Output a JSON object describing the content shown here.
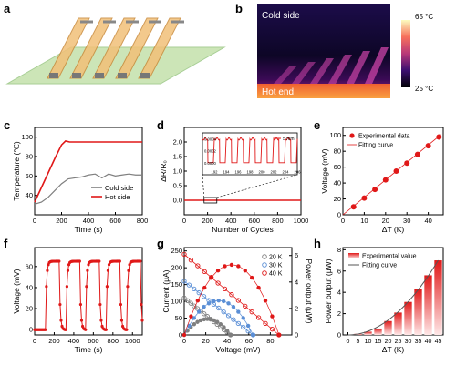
{
  "panels": {
    "a": {
      "letter": "a"
    },
    "b": {
      "letter": "b",
      "label_top": "Cold side",
      "label_bottom": "Hot end",
      "cbar_top": "65 °C",
      "cbar_bottom": "25 °C"
    },
    "c": {
      "letter": "c"
    },
    "d": {
      "letter": "d",
      "inset_legend": "5 mm"
    },
    "e": {
      "letter": "e"
    },
    "f": {
      "letter": "f"
    },
    "g": {
      "letter": "g"
    },
    "h": {
      "letter": "h"
    }
  },
  "colors": {
    "red": "#e01818",
    "blue": "#5b8fd6",
    "gray": "#7f7f7f",
    "green": "#c7e3b0",
    "orange": "#e0a060"
  },
  "chart_data": [
    {
      "id": "c",
      "type": "line",
      "xlabel": "Time (s)",
      "ylabel": "Temperature (℃)",
      "xlim": [
        0,
        800
      ],
      "ylim": [
        20,
        110
      ],
      "xticks": [
        "0",
        "200",
        "400",
        "600",
        "800"
      ],
      "yticks": [
        "40",
        "60",
        "80",
        "100"
      ],
      "legend_position": "bottom-right",
      "series": [
        {
          "name": "Cold side",
          "color": "#7f7f7f",
          "x": [
            0,
            50,
            100,
            150,
            200,
            250,
            300,
            350,
            400,
            450,
            500,
            550,
            600,
            650,
            700,
            750,
            800
          ],
          "y": [
            31,
            33,
            38,
            45,
            52,
            57,
            58,
            59,
            61,
            62,
            58,
            62,
            60,
            61,
            62,
            61,
            61
          ]
        },
        {
          "name": "Hot side",
          "color": "#e01818",
          "x": [
            0,
            50,
            100,
            150,
            200,
            230,
            260,
            300,
            400,
            500,
            600,
            700,
            800
          ],
          "y": [
            33,
            48,
            63,
            78,
            92,
            96,
            95,
            95,
            95,
            95,
            95,
            95,
            95
          ]
        }
      ]
    },
    {
      "id": "d",
      "type": "line",
      "xlabel": "Number of Cycles",
      "ylabel": "ΔR/R₀",
      "xlim": [
        0,
        1000
      ],
      "ylim": [
        -0.5,
        2.5
      ],
      "xticks": [
        "0",
        "200",
        "400",
        "600",
        "800",
        "1000"
      ],
      "yticks": [
        "0.0",
        "0.5",
        "1.0",
        "1.5",
        "2.0"
      ],
      "series": [
        {
          "name": "",
          "color": "#e01818",
          "x": [
            0,
            1000
          ],
          "y": [
            0,
            0
          ]
        }
      ],
      "inset": {
        "legend": "5 mm",
        "xlim": [
          190,
          206
        ],
        "ylim": [
          -0.0002,
          0.0005
        ],
        "xticks": [
          "192",
          "194",
          "196",
          "198",
          "200",
          "202",
          "204",
          "206"
        ],
        "yticks": [
          "0.0000",
          "0.0002",
          "0.0004"
        ],
        "cycles": 8,
        "peak": 0.0004,
        "trough": 0.0
      }
    },
    {
      "id": "e",
      "type": "scatter",
      "xlabel": "ΔT (K)",
      "ylabel": "Voltage (mV)",
      "xlim": [
        0,
        47
      ],
      "ylim": [
        0,
        110
      ],
      "xticks": [
        "0",
        "10",
        "20",
        "30",
        "40"
      ],
      "yticks": [
        "0",
        "20",
        "40",
        "60",
        "80",
        "100"
      ],
      "legend_position": "top-left",
      "series": [
        {
          "name": "Experimental data",
          "color": "#e01818",
          "x": [
            5,
            10,
            15,
            20,
            25,
            30,
            35,
            40,
            45
          ],
          "y": [
            10,
            21,
            32,
            44,
            55,
            65,
            76,
            87,
            98
          ]
        },
        {
          "name": "Fitting curve",
          "color": "#e01818",
          "x": [
            0,
            46
          ],
          "y": [
            0,
            101
          ]
        }
      ]
    },
    {
      "id": "f",
      "type": "line",
      "xlabel": "Time (s)",
      "ylabel": "Voltage (mV)",
      "xlim": [
        0,
        1100
      ],
      "ylim": [
        -5,
        78
      ],
      "xticks": [
        "0",
        "200",
        "400",
        "600",
        "800",
        "1000"
      ],
      "yticks": [
        "0",
        "20",
        "40",
        "60"
      ],
      "pulses": [
        {
          "start": 110,
          "end": 250
        },
        {
          "start": 320,
          "end": 460
        },
        {
          "start": 520,
          "end": 660
        },
        {
          "start": 730,
          "end": 870
        },
        {
          "start": 940,
          "end": 1080
        }
      ],
      "high": 65,
      "low": 0,
      "color": "#e01818"
    },
    {
      "id": "g",
      "type": "scatter",
      "xlabel": "Voltage (mV)",
      "ylabel": "Current (μA)",
      "y2label": "Power output (μW)",
      "xlim": [
        0,
        100
      ],
      "ylim": [
        0,
        260
      ],
      "y2lim": [
        0,
        6.6
      ],
      "xticks": [
        "0",
        "20",
        "40",
        "60",
        "80"
      ],
      "yticks": [
        "0",
        "50",
        "100",
        "150",
        "200",
        "250"
      ],
      "y2ticks": [
        "0",
        "2",
        "4",
        "6"
      ],
      "legend_position": "top-right",
      "series": [
        {
          "name": "20 K",
          "color": "#7f7f7f",
          "voc": 43,
          "isc": 110,
          "pmax": 1.2
        },
        {
          "name": "30 K",
          "color": "#5b8fd6",
          "voc": 64,
          "isc": 160,
          "pmax": 2.6
        },
        {
          "name": "40 K",
          "color": "#e01818",
          "voc": 88,
          "isc": 240,
          "pmax": 5.3
        }
      ]
    },
    {
      "id": "h",
      "type": "bar",
      "xlabel": "ΔT (K)",
      "ylabel": "Power output (μW)",
      "categories": [
        "0",
        "5",
        "10",
        "15",
        "20",
        "25",
        "30",
        "35",
        "40",
        "45"
      ],
      "values": [
        0,
        0.1,
        0.3,
        0.6,
        1.3,
        2.1,
        3.1,
        4.3,
        5.6,
        7.0
      ],
      "ylim": [
        0,
        8.2
      ],
      "yticks": [
        "0",
        "2",
        "4",
        "6",
        "8"
      ],
      "legend_position": "top-left",
      "series": [
        {
          "name": "Experimental value",
          "color": "#e01818"
        },
        {
          "name": "Fitting curve",
          "color": "#7f7f7f"
        }
      ]
    }
  ]
}
